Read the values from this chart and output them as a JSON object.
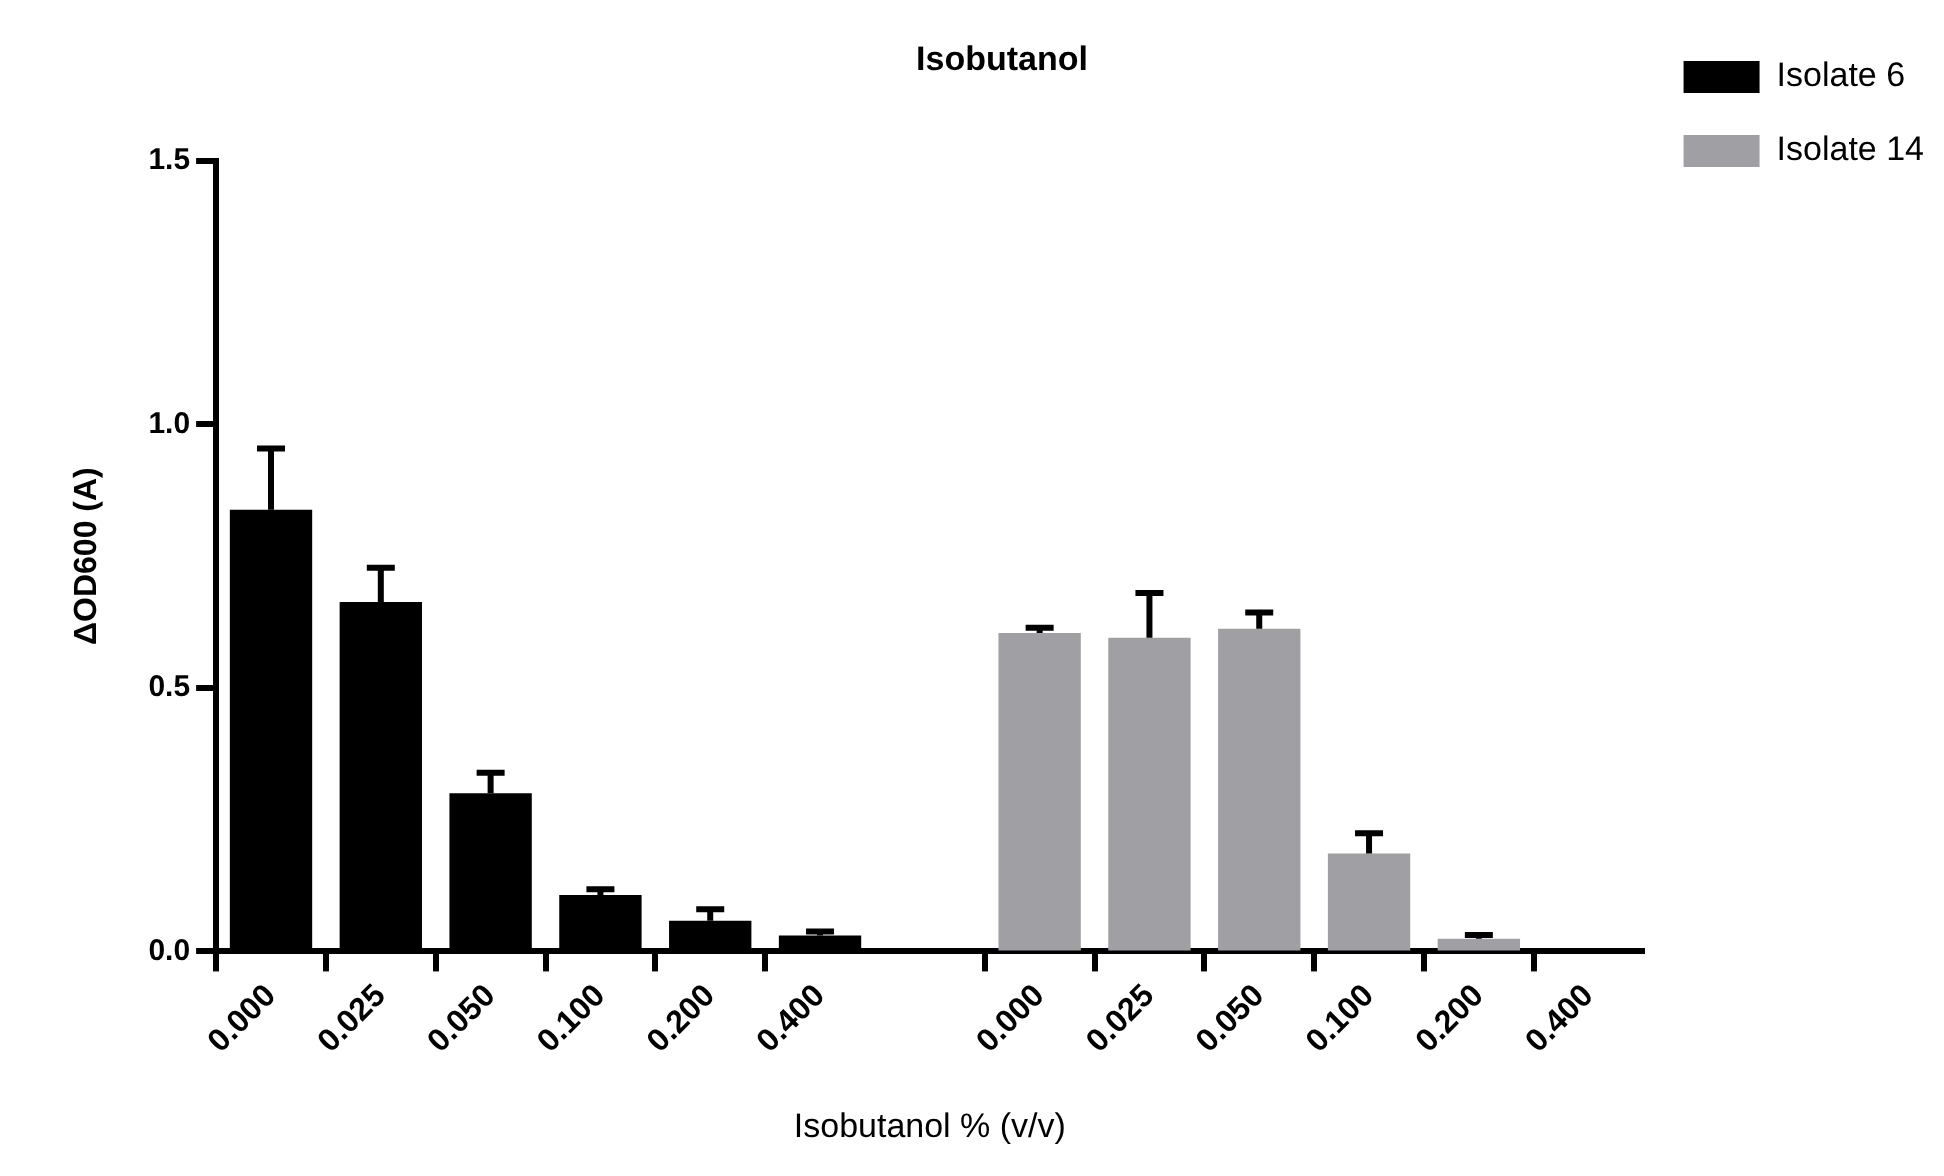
{
  "chart_data": {
    "type": "bar",
    "title": "Isobutanol",
    "xlabel": "Isobutanol % (v/v)",
    "ylabel": "ΔOD600 (A)",
    "categories": [
      "0.000",
      "0.025",
      "0.050",
      "0.100",
      "0.200",
      "0.400",
      null,
      "0.000",
      "0.025",
      "0.050",
      "0.100",
      "0.200",
      "0.400"
    ],
    "series": [
      {
        "name": "Isolate 6",
        "color": "#000000",
        "values": [
          0.838,
          0.663,
          0.3,
          0.107,
          0.058,
          0.03,
          null,
          null,
          null,
          null,
          null,
          null,
          null
        ],
        "errors": [
          [
            0.838,
            0.954
          ],
          [
            0.663,
            0.728
          ],
          [
            0.3,
            0.339
          ],
          [
            0.107,
            0.118
          ],
          [
            0.058,
            0.08
          ],
          [
            0.03,
            0.038
          ],
          null,
          null,
          null,
          null,
          null,
          null,
          null
        ]
      },
      {
        "name": "Isolate 14",
        "color": "#a0a0a4",
        "values": [
          null,
          null,
          null,
          null,
          null,
          null,
          null,
          0.604,
          0.595,
          0.612,
          0.186,
          0.024,
          0
        ],
        "errors": [
          null,
          null,
          null,
          null,
          null,
          null,
          null,
          [
            0.604,
            0.614
          ],
          [
            0.595,
            0.68
          ],
          [
            0.612,
            0.643
          ],
          [
            0.186,
            0.224
          ],
          [
            0.024,
            0.031
          ],
          null
        ]
      }
    ],
    "ylim": [
      0,
      1.5
    ],
    "yticks": [
      {
        "value": 0,
        "label": "0.0"
      },
      {
        "value": 0.5,
        "label": "0.5"
      },
      {
        "value": 1,
        "label": "1.0"
      },
      {
        "value": 1.5,
        "label": "1.5"
      }
    ],
    "grid": false,
    "legend": "top right"
  }
}
